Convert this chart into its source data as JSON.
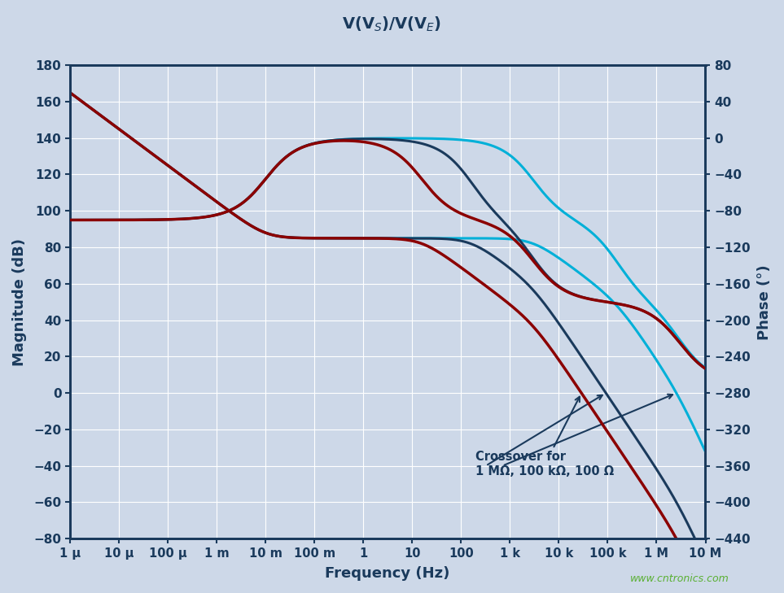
{
  "title_display": "V(V$_S$)/V(V$_E$)",
  "xlabel": "Frequency (Hz)",
  "ylabel_left": "Magnitude (dB)",
  "ylabel_right": "Phase (°)",
  "ylim_left": [
    -80,
    180
  ],
  "ylim_right": [
    -440,
    80
  ],
  "yticks_left": [
    -80,
    -60,
    -40,
    -20,
    0,
    20,
    40,
    60,
    80,
    100,
    120,
    140,
    160,
    180
  ],
  "yticks_right": [
    -440,
    -400,
    -360,
    -320,
    -280,
    -240,
    -200,
    -160,
    -120,
    -80,
    -40,
    0,
    40,
    80
  ],
  "background_color": "#cdd8e8",
  "grid_color_major": "#ffffff",
  "grid_color_minor": "#dce6f1",
  "axis_color": "#1a3a5c",
  "color_red": "#8b0000",
  "color_navy": "#1a3a5c",
  "color_cyan": "#00b0d8",
  "annotation_color": "#1a3a5c",
  "watermark": "www.cntronics.com",
  "watermark_color": "#5ab033",
  "crossover_text": "Crossover for\n1 MΩ, 100 kΩ, 100 Ω",
  "xtick_labels": [
    "1 μ",
    "10 μ",
    "100 μ",
    "1 m",
    "10 m",
    "100 m",
    "1",
    "10",
    "100",
    "1 k",
    "10 k",
    "100 k",
    "1 M",
    "10 M"
  ],
  "xtick_positions": [
    1e-06,
    1e-05,
    0.0001,
    0.001,
    0.01,
    0.1,
    1.0,
    10.0,
    100.0,
    1000.0,
    10000.0,
    100000.0,
    1000000.0,
    10000000.0
  ]
}
